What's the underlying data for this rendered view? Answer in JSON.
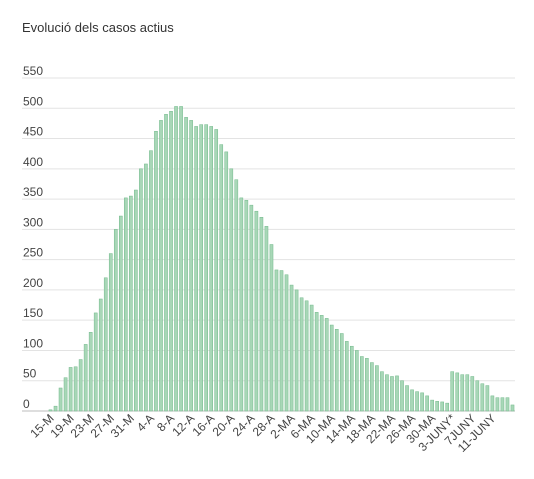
{
  "chart_data": {
    "type": "bar",
    "title": "Evolució dels casos actius",
    "xlabel": "",
    "ylabel": "",
    "ylim": [
      0,
      550
    ],
    "yticks": [
      0,
      50,
      100,
      150,
      200,
      250,
      300,
      350,
      400,
      450,
      500,
      550
    ],
    "grid": true,
    "bar_color": "#a8d7b7",
    "bar_stroke": "#72b98b",
    "x_tick_labels": [
      "15-M",
      "19-M",
      "23-M",
      "27-M",
      "31-M",
      "4-A",
      "8-A",
      "12-A",
      "16-A",
      "20-A",
      "24-A",
      "28-A",
      "2-MA",
      "6-MA",
      "10-MA",
      "14-MA",
      "18-MA",
      "22-MA",
      "26-MA",
      "30-MA",
      "3-JUNY*",
      "7JUNY",
      "11-JUNY"
    ],
    "categories": [
      "15-M",
      "16-M",
      "17-M",
      "18-M",
      "19-M",
      "20-M",
      "21-M",
      "22-M",
      "23-M",
      "24-M",
      "25-M",
      "26-M",
      "27-M",
      "28-M",
      "29-M",
      "30-M",
      "31-M",
      "1-A",
      "2-A",
      "3-A",
      "4-A",
      "5-A",
      "6-A",
      "7-A",
      "8-A",
      "9-A",
      "10-A",
      "11-A",
      "12-A",
      "13-A",
      "14-A",
      "15-A",
      "16-A",
      "17-A",
      "18-A",
      "19-A",
      "20-A",
      "21-A",
      "22-A",
      "23-A",
      "24-A",
      "25-A",
      "26-A",
      "27-A",
      "28-A",
      "29-A",
      "30-A",
      "1-MA",
      "2-MA",
      "3-MA",
      "4-MA",
      "5-MA",
      "6-MA",
      "7-MA",
      "8-MA",
      "9-MA",
      "10-MA",
      "11-MA",
      "12-MA",
      "13-MA",
      "14-MA",
      "15-MA",
      "16-MA",
      "17-MA",
      "18-MA",
      "19-MA",
      "20-MA",
      "21-MA",
      "22-MA",
      "23-MA",
      "24-MA",
      "25-MA",
      "26-MA",
      "27-MA",
      "28-MA",
      "29-MA",
      "30-MA",
      "31-MA",
      "1-JUNY",
      "2-JUNY",
      "3-JUNY*",
      "4-JUNY",
      "5-JUNY",
      "6-JUNY",
      "7JUNY",
      "8-JUNY",
      "9-JUNY",
      "10-JUNY",
      "11-JUNY",
      "12-JUNY",
      "13-JUNY",
      "14-JUNY",
      "15-JUNY"
    ],
    "values": [
      2,
      8,
      38,
      55,
      72,
      73,
      85,
      110,
      130,
      162,
      185,
      220,
      260,
      300,
      322,
      352,
      355,
      365,
      400,
      408,
      430,
      462,
      480,
      490,
      495,
      503,
      503,
      485,
      480,
      470,
      473,
      473,
      470,
      465,
      440,
      428,
      400,
      382,
      352,
      348,
      340,
      330,
      320,
      305,
      275,
      233,
      232,
      225,
      208,
      200,
      187,
      182,
      175,
      163,
      158,
      153,
      142,
      135,
      128,
      115,
      107,
      100,
      90,
      87,
      80,
      75,
      65,
      60,
      57,
      58,
      50,
      42,
      35,
      32,
      30,
      25,
      18,
      16,
      15,
      13,
      65,
      63,
      60,
      60,
      57,
      50,
      45,
      42,
      25,
      22,
      22,
      22,
      10
    ]
  }
}
